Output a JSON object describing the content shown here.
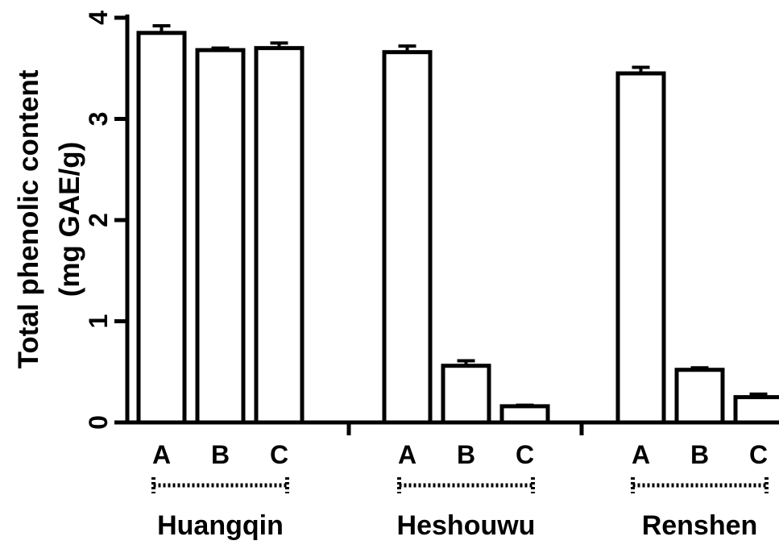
{
  "chart_data": {
    "type": "bar",
    "title": "",
    "ylabel": "Total phenolic content",
    "ylabel_unit": "(mg GAE/g)",
    "xlabel": "",
    "ylim": [
      0,
      4
    ],
    "yticks": [
      0,
      1,
      2,
      3,
      4
    ],
    "grid": false,
    "legend": "none",
    "colors": {
      "bar_fill": "#ffffff",
      "bar_stroke": "#000000",
      "axis": "#000000"
    },
    "groups": [
      {
        "name": "Huangqin",
        "bars": [
          {
            "label": "A",
            "value": 3.85,
            "error": 0.07
          },
          {
            "label": "B",
            "value": 3.68,
            "error": 0.02
          },
          {
            "label": "C",
            "value": 3.7,
            "error": 0.05
          }
        ]
      },
      {
        "name": "Heshouwu",
        "bars": [
          {
            "label": "A",
            "value": 3.66,
            "error": 0.06
          },
          {
            "label": "B",
            "value": 0.56,
            "error": 0.05
          },
          {
            "label": "C",
            "value": 0.16,
            "error": 0.01
          }
        ]
      },
      {
        "name": "Renshen",
        "bars": [
          {
            "label": "A",
            "value": 3.45,
            "error": 0.06
          },
          {
            "label": "B",
            "value": 0.52,
            "error": 0.02
          },
          {
            "label": "C",
            "value": 0.25,
            "error": 0.03
          }
        ]
      }
    ]
  }
}
